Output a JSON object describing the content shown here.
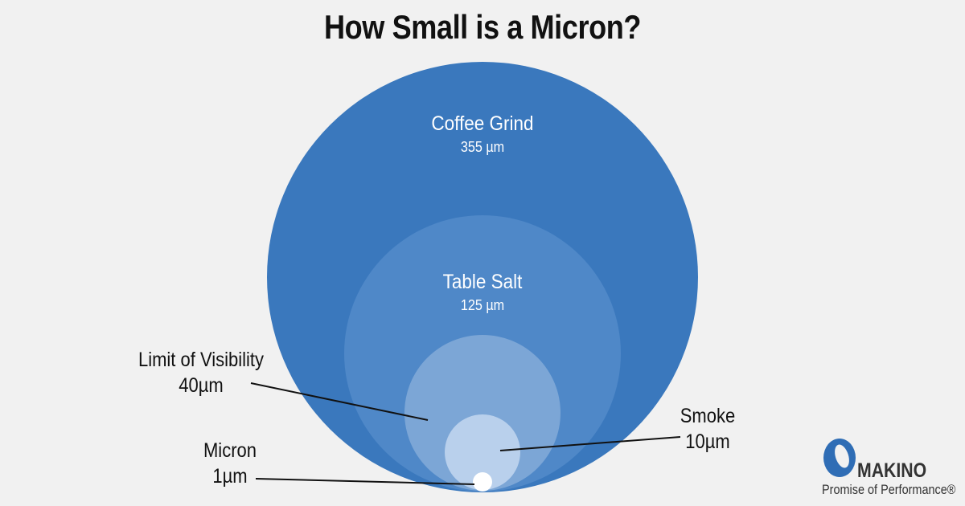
{
  "title": "How Small is a Micron?",
  "colors": {
    "background": "#f1f1f1",
    "coffee": "#3a78bd",
    "salt": "#4f88c8",
    "visibility": "#7ca6d6",
    "smoke": "#b9d0ec",
    "micron": "#ffffff",
    "logo_blue": "#2f6db5"
  },
  "items": [
    {
      "name": "Coffee Grind",
      "size": "355 µm",
      "microns": 355
    },
    {
      "name": "Table Salt",
      "size": "125 µm",
      "microns": 125
    },
    {
      "name": "Limit of Visibility",
      "size": "40µm",
      "microns": 40
    },
    {
      "name": "Smoke",
      "size": "10µm",
      "microns": 10
    },
    {
      "name": "Micron",
      "size": "1µm",
      "microns": 1
    }
  ],
  "logo": {
    "name": "MAKINO",
    "tagline": "Promise of Performance®",
    "icon": "makino-ring-icon"
  }
}
